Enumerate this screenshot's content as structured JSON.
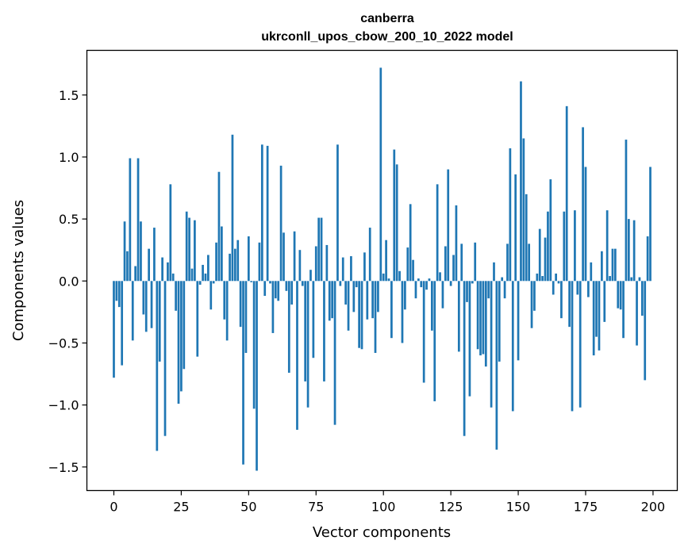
{
  "chart_data": {
    "type": "bar",
    "title": "canberra",
    "subtitle": "ukrconll_upos_cbow_200_10_2022 model",
    "xlabel": "Vector components",
    "ylabel": "Components values",
    "xlim": [
      -10,
      209
    ],
    "ylim": [
      -1.69,
      1.86
    ],
    "xticks": [
      0,
      25,
      50,
      75,
      100,
      125,
      150,
      175,
      200
    ],
    "yticks": [
      -1.5,
      -1.0,
      -0.5,
      0.0,
      0.5,
      1.0,
      1.5
    ],
    "ytick_labels": [
      "−1.5",
      "−1.0",
      "−0.5",
      "0.0",
      "0.5",
      "1.0",
      "1.5"
    ],
    "bar_color": "#1f77b4",
    "grid": false,
    "x": [
      0,
      1,
      2,
      3,
      4,
      5,
      6,
      7,
      8,
      9,
      10,
      11,
      12,
      13,
      14,
      15,
      16,
      17,
      18,
      19,
      20,
      21,
      22,
      23,
      24,
      25,
      26,
      27,
      28,
      29,
      30,
      31,
      32,
      33,
      34,
      35,
      36,
      37,
      38,
      39,
      40,
      41,
      42,
      43,
      44,
      45,
      46,
      47,
      48,
      49,
      50,
      51,
      52,
      53,
      54,
      55,
      56,
      57,
      58,
      59,
      60,
      61,
      62,
      63,
      64,
      65,
      66,
      67,
      68,
      69,
      70,
      71,
      72,
      73,
      74,
      75,
      76,
      77,
      78,
      79,
      80,
      81,
      82,
      83,
      84,
      85,
      86,
      87,
      88,
      89,
      90,
      91,
      92,
      93,
      94,
      95,
      96,
      97,
      98,
      99,
      100,
      101,
      102,
      103,
      104,
      105,
      106,
      107,
      108,
      109,
      110,
      111,
      112,
      113,
      114,
      115,
      116,
      117,
      118,
      119,
      120,
      121,
      122,
      123,
      124,
      125,
      126,
      127,
      128,
      129,
      130,
      131,
      132,
      133,
      134,
      135,
      136,
      137,
      138,
      139,
      140,
      141,
      142,
      143,
      144,
      145,
      146,
      147,
      148,
      149,
      150,
      151,
      152,
      153,
      154,
      155,
      156,
      157,
      158,
      159,
      160,
      161,
      162,
      163,
      164,
      165,
      166,
      167,
      168,
      169,
      170,
      171,
      172,
      173,
      174,
      175,
      176,
      177,
      178,
      179,
      180,
      181,
      182,
      183,
      184,
      185,
      186,
      187,
      188,
      189,
      190,
      191,
      192,
      193,
      194,
      195,
      196,
      197,
      198,
      199
    ],
    "values": [
      -0.78,
      -0.16,
      -0.21,
      -0.68,
      0.48,
      0.24,
      0.99,
      -0.48,
      0.12,
      0.99,
      0.48,
      -0.27,
      -0.41,
      0.26,
      -0.38,
      0.43,
      -1.37,
      -0.65,
      0.19,
      -1.25,
      0.15,
      0.78,
      0.06,
      -0.24,
      -0.99,
      -0.89,
      -0.71,
      0.56,
      0.51,
      0.1,
      0.49,
      -0.61,
      -0.03,
      0.13,
      0.06,
      0.21,
      -0.23,
      -0.02,
      0.31,
      0.88,
      0.44,
      -0.31,
      -0.48,
      0.22,
      1.18,
      0.26,
      0.33,
      -0.37,
      -1.48,
      -0.58,
      0.36,
      -0.01,
      -1.03,
      -1.53,
      0.31,
      1.1,
      -0.12,
      1.09,
      -0.02,
      -0.42,
      -0.14,
      -0.16,
      0.93,
      0.39,
      -0.08,
      -0.74,
      -0.19,
      0.4,
      -1.2,
      0.25,
      -0.04,
      -0.81,
      -1.02,
      0.09,
      -0.62,
      0.28,
      0.51,
      0.51,
      -0.81,
      0.29,
      -0.32,
      -0.3,
      -1.16,
      1.1,
      -0.04,
      0.19,
      -0.19,
      -0.4,
      0.2,
      -0.25,
      -0.05,
      -0.54,
      -0.55,
      0.23,
      -0.31,
      0.43,
      -0.3,
      -0.58,
      -0.25,
      1.72,
      0.06,
      0.33,
      0.02,
      -0.46,
      1.06,
      0.94,
      0.08,
      -0.5,
      -0.23,
      0.27,
      0.62,
      0.17,
      -0.14,
      0.02,
      -0.05,
      -0.82,
      -0.07,
      0.02,
      -0.4,
      -0.97,
      0.78,
      0.07,
      -0.22,
      0.28,
      0.9,
      -0.04,
      0.21,
      0.61,
      -0.57,
      0.3,
      -1.25,
      -0.17,
      -0.93,
      -0.02,
      0.31,
      -0.55,
      -0.6,
      -0.59,
      -0.69,
      -0.14,
      -1.02,
      0.15,
      -1.36,
      -0.65,
      0.03,
      -0.14,
      0.3,
      1.07,
      -1.05,
      0.86,
      -0.64,
      1.61,
      1.15,
      0.7,
      0.3,
      -0.38,
      -0.24,
      0.06,
      0.42,
      0.04,
      0.35,
      0.56,
      0.82,
      -0.11,
      0.06,
      -0.02,
      -0.3,
      0.56,
      1.41,
      -0.37,
      -1.05,
      0.57,
      -0.11,
      -1.02,
      1.24,
      0.92,
      -0.13,
      0.15,
      -0.6,
      -0.45,
      -0.56,
      0.24,
      -0.33,
      0.57,
      0.04,
      0.26,
      0.26,
      -0.22,
      -0.23,
      -0.46,
      1.14,
      0.5,
      0.03,
      0.49,
      -0.52,
      0.03,
      -0.28,
      -0.8,
      0.36,
      0.92
    ]
  }
}
